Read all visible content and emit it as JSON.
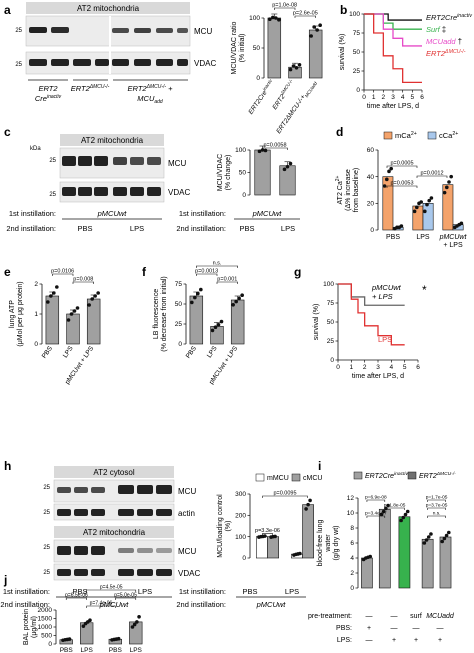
{
  "panels": {
    "a": {
      "letter": "a",
      "blot_title": "AT2 mitochondria",
      "mw_top": "25",
      "mw_bottom": "25",
      "band_mcu": "MCU",
      "band_vdac": "VDAC",
      "group_labels": [
        "ERT2\nCre",
        "ERT2ΔMCU-/-",
        "ERT2ΔMCU-/- +\nMCUadd"
      ],
      "group_label_1": "ERT2",
      "group_label_1b": "Cre",
      "group_label_1sup": "inactiv",
      "group_label_2": "ERT2",
      "group_label_2sup": "ΔMCU-/-",
      "group_label_3": "ERT2",
      "group_label_3sup": "ΔMCU-/-",
      "group_label_3b": "+",
      "group_label_3c": "MCU",
      "group_label_3sub": "add"
    },
    "b": {
      "letter": "b"
    },
    "c": {
      "letter": "c",
      "kda": "kDa",
      "blot_title": "AT2 mitochondria",
      "mw_top": "25",
      "mw_bottom": "25",
      "band_mcu": "MCU",
      "band_vdac": "VDAC",
      "first_inst": "1st instillation:",
      "second_inst": "2nd instillation:",
      "first_val": "pMCUwt",
      "second_pbs": "PBS",
      "second_lps": "LPS"
    },
    "d": {
      "letter": "d"
    },
    "e": {
      "letter": "e"
    },
    "f": {
      "letter": "f"
    },
    "g": {
      "letter": "g"
    },
    "h": {
      "letter": "h",
      "blot1_title": "AT2 cytosol",
      "blot2_title": "AT2 mitochondria",
      "mw_top1": "25",
      "mw_bot1": "25",
      "mw_top2": "25",
      "mw_bot2": "25",
      "band_mcu": "MCU",
      "band_actin": "actin",
      "band_vdac": "VDAC",
      "first_inst": "1st instillation:",
      "second_inst": "2nd instillation:",
      "first_pbs": "PBS",
      "first_lps": "LPS",
      "second_val": "pMCUwt"
    },
    "i": {
      "letter": "i",
      "pretreat": "pre-treatment:",
      "pbs": "PBS:",
      "lps": "LPS:",
      "dash": "—",
      "plus": "+",
      "surf": "surf",
      "mcuadd": "MCUadd"
    },
    "j": {
      "letter": "j"
    }
  },
  "chart_data": [
    {
      "id": "a-bar",
      "type": "bar",
      "categories": [
        "ERT2Cre inactiv",
        "ERT2ΔMCU-/-",
        "ERT2ΔMCU-/- + MCUadd"
      ],
      "tick_labels": [
        {
          "main": "ERT2Cre",
          "sup": "inactiv"
        },
        {
          "main": "ERT2",
          "sup": "ΔMCU-/-"
        },
        {
          "main": "ERT2ΔMCU-/-+",
          "sub": "MCUadd"
        }
      ],
      "values": [
        100,
        18,
        80
      ],
      "points": [
        [
          98,
          101,
          100,
          97
        ],
        [
          14,
          20,
          17,
          22
        ],
        [
          70,
          85,
          80,
          88
        ]
      ],
      "ylabel": "MCU/VDAC ratio",
      "ylabel2": "(% initial)",
      "ylim": [
        0,
        100
      ],
      "yticks": [
        0,
        50,
        100
      ],
      "bar_color": "#a0a0a0",
      "annotations": [
        {
          "text": "p=1.0e-08",
          "from": 0,
          "to": 1,
          "level": 2
        },
        {
          "text": "p=2.6e-05",
          "from": 1,
          "to": 2,
          "level": 1
        }
      ]
    },
    {
      "id": "b-survival",
      "type": "line",
      "ylabel": "survival (%)",
      "xlabel": "time after LPS, d",
      "xlim": [
        0,
        6
      ],
      "ylim": [
        0,
        100
      ],
      "xticks": [
        0,
        1,
        2,
        3,
        4,
        5,
        6
      ],
      "yticks": [
        0,
        25,
        50,
        75,
        100
      ],
      "series": [
        {
          "name": "ERT2Cre",
          "sup": "inactiv",
          "marker": "*",
          "color": "#111111",
          "x": [
            0,
            2.5,
            2.5,
            6
          ],
          "y": [
            100,
            100,
            92,
            92
          ]
        },
        {
          "name": "Surf",
          "marker": "‡",
          "color": "#37b24d",
          "italic": true,
          "x": [
            0,
            2,
            2,
            3,
            3,
            6
          ],
          "y": [
            100,
            100,
            88,
            88,
            80,
            80
          ]
        },
        {
          "name": "MCUadd",
          "marker": "†",
          "color": "#e64ac8",
          "italic": true,
          "x": [
            0,
            2,
            2,
            3,
            3,
            4,
            4,
            6
          ],
          "y": [
            100,
            100,
            80,
            80,
            68,
            68,
            58,
            58
          ]
        },
        {
          "name": "ERT2",
          "sup": "ΔMCU-/-",
          "marker": "",
          "color": "#e03131",
          "x": [
            0,
            1,
            1,
            2,
            2,
            3,
            3,
            4,
            4,
            6
          ],
          "y": [
            100,
            100,
            75,
            75,
            45,
            45,
            28,
            28,
            10,
            10
          ]
        }
      ]
    },
    {
      "id": "c-bar",
      "type": "bar",
      "categories": [
        "PBS",
        "LPS"
      ],
      "values": [
        100,
        65
      ],
      "points": [
        [
          97,
          100,
          99
        ],
        [
          57,
          63,
          70
        ]
      ],
      "ylabel": "MCU/VDAC",
      "ylabel2": "(% change)",
      "ylim": [
        0,
        100
      ],
      "yticks": [
        0,
        50,
        100
      ],
      "bar_color": "#a0a0a0",
      "annotations": [
        {
          "text": "p=0.0058",
          "from": 0,
          "to": 1,
          "level": 1
        }
      ]
    },
    {
      "id": "d-bar",
      "type": "bar",
      "categories": [
        "PBS",
        "LPS",
        "pMCUwt + LPS"
      ],
      "tick_labels": [
        {
          "main": "PBS"
        },
        {
          "main": "LPS"
        },
        {
          "main": "pMCUwt",
          "line2": "+ LPS"
        }
      ],
      "series": [
        {
          "name": "mCa",
          "sup": "2+",
          "values": [
            40,
            18,
            34
          ],
          "color": "#f4a36b",
          "points": [
            [
              33,
              38,
              44,
              46
            ],
            [
              14,
              17,
              20,
              21
            ],
            [
              28,
              32,
              36,
              40
            ]
          ]
        },
        {
          "name": "cCa",
          "sup": "2+",
          "values": [
            2,
            20,
            4
          ],
          "color": "#a9c8ec",
          "points": [
            [
              1,
              2,
              2,
              3
            ],
            [
              14,
              19,
              22,
              24
            ],
            [
              2,
              3,
              4,
              5
            ]
          ]
        }
      ],
      "ylabel": "AT2 Ca",
      "ylabel_sup": "2+",
      "ylabel2": "(Δ% increase",
      "ylabel3": "from baseline)",
      "ylim": [
        0,
        60
      ],
      "yticks": [
        0,
        20,
        40,
        60
      ],
      "annotations": [
        {
          "text": "p=0.0005",
          "from": 0,
          "to": 1,
          "level": 3
        },
        {
          "text": "p=0.0012",
          "from": 1,
          "to": 2,
          "level": 2
        },
        {
          "text": "p=0.0053",
          "from": 0,
          "to": 1,
          "level": 1
        }
      ]
    },
    {
      "id": "e-bar",
      "type": "bar",
      "categories": [
        "PBS",
        "LPS",
        "pMCUwt + LPS"
      ],
      "values": [
        1.6,
        1.0,
        1.5
      ],
      "points": [
        [
          1.4,
          1.6,
          1.7,
          1.9
        ],
        [
          0.8,
          1.0,
          1.1,
          1.2
        ],
        [
          1.3,
          1.5,
          1.6,
          1.7
        ]
      ],
      "ylabel": "lung ATP",
      "ylabel2": "(μMol per μg protein)",
      "ylim": [
        0,
        2
      ],
      "yticks": [
        0,
        1,
        2
      ],
      "bar_color": "#a0a0a0",
      "annotations": [
        {
          "text": "p=0.0106",
          "from": 0,
          "to": 1,
          "level": 2
        },
        {
          "text": "p=0.008",
          "from": 1,
          "to": 2,
          "level": 1
        }
      ]
    },
    {
      "id": "f-bar",
      "type": "bar",
      "categories": [
        "PBS",
        "LPS",
        "pMCUwt + LPS"
      ],
      "values": [
        60,
        22,
        55
      ],
      "points": [
        [
          52,
          58,
          63,
          68
        ],
        [
          17,
          21,
          24,
          28
        ],
        [
          49,
          53,
          57,
          61
        ]
      ],
      "ylabel": "LB fluorescence",
      "ylabel2": "(% decrease from initial)",
      "ylim": [
        0,
        75
      ],
      "yticks": [
        0,
        25,
        50,
        75
      ],
      "bar_color": "#a0a0a0",
      "annotations": [
        {
          "text": "n.s.",
          "from": 0,
          "to": 2,
          "level": 3
        },
        {
          "text": "p=0.0013",
          "from": 0,
          "to": 1,
          "level": 2
        },
        {
          "text": "p=0.001",
          "from": 1,
          "to": 2,
          "level": 1
        }
      ]
    },
    {
      "id": "g-survival",
      "type": "line",
      "ylabel": "survival (%)",
      "xlabel": "time after LPS, d",
      "xlim": [
        0,
        6
      ],
      "ylim": [
        0,
        100
      ],
      "xticks": [
        0,
        1,
        2,
        3,
        4,
        5,
        6
      ],
      "yticks": [
        0,
        25,
        50,
        75,
        100
      ],
      "series": [
        {
          "name": "pMCUwt",
          "name2": "+ LPS",
          "marker": "*",
          "color": "#666666",
          "x": [
            0,
            1,
            1,
            2,
            2,
            5
          ],
          "y": [
            100,
            100,
            83,
            83,
            72,
            72
          ]
        },
        {
          "name": "LPS",
          "marker": "",
          "color": "#e03131",
          "x": [
            0,
            1,
            1,
            1.5,
            1.5,
            2,
            2,
            3,
            3,
            4,
            4,
            5
          ],
          "y": [
            100,
            100,
            80,
            80,
            62,
            62,
            45,
            45,
            32,
            32,
            20,
            20
          ]
        }
      ]
    },
    {
      "id": "h-bar",
      "type": "bar",
      "categories": [
        "PBS",
        "LPS"
      ],
      "series": [
        {
          "name": "mMCU",
          "values": [
            100,
            18
          ],
          "color": "#ffffff",
          "points": [
            [
              98,
              100,
              101,
              103
            ],
            [
              14,
              17,
              19,
              21
            ]
          ]
        },
        {
          "name": "cMCU",
          "values": [
            100,
            250
          ],
          "color": "#a0a0a0",
          "points": [
            [
              98,
              100,
              101
            ],
            [
              230,
              250,
              270
            ]
          ]
        }
      ],
      "ylabel": "MCU/loading control",
      "ylabel2": "(%)",
      "ylim": [
        0,
        300
      ],
      "yticks": [
        0,
        100,
        200,
        300
      ],
      "annotations": [
        {
          "text": "p=0.0095",
          "from": 0,
          "to": 1,
          "level": 2
        },
        {
          "text": "p=3.3e-06",
          "from": 0,
          "to": 0,
          "level": 1
        }
      ]
    },
    {
      "id": "i-bar",
      "type": "bar",
      "categories": [
        "1",
        "2",
        "3",
        "4",
        "5"
      ],
      "values": [
        4,
        10.5,
        9.5,
        6.5,
        6.8
      ],
      "colors": [
        "#a0a0a0",
        "#a0a0a0",
        "#37b24d",
        "#a0a0a0",
        "#a0a0a0"
      ],
      "points": [
        [
          3.8,
          4.0,
          4.1,
          4.2
        ],
        [
          9.8,
          10.2,
          10.6,
          11.0
        ],
        [
          9.0,
          9.4,
          9.8,
          10.2
        ],
        [
          6.0,
          6.4,
          6.8,
          7.2
        ],
        [
          6.2,
          6.6,
          7.0,
          7.4
        ]
      ],
      "ylabel": "blood-free lung",
      "ylabel2": "water",
      "ylabel3": "(g/g dry wt)",
      "ylim": [
        0,
        12
      ],
      "yticks": [
        0,
        2,
        4,
        6,
        8,
        10,
        12
      ],
      "legend": [
        {
          "name": "ERT2Cre",
          "sup": "inactiv",
          "color": "#a0a0a0"
        },
        {
          "name": "ERT2",
          "sup": "ΔMCU-/-",
          "color": "#707070"
        }
      ],
      "annotations": [
        {
          "text": "p=6.9e-08",
          "from": 0,
          "to": 1,
          "level": 3
        },
        {
          "text": "p=1.7e-05",
          "from": 3,
          "to": 4,
          "level": 3
        },
        {
          "text": "p=1.8e-05",
          "from": 1,
          "to": 2,
          "level": 2
        },
        {
          "text": "p=3.7e-05",
          "from": 3,
          "to": 4,
          "level": 2
        },
        {
          "text": "p=3.4e-07",
          "from": 0,
          "to": 1,
          "level": 1
        },
        {
          "text": "n.s.",
          "from": 3,
          "to": 4,
          "level": 1
        }
      ]
    },
    {
      "id": "j-bar",
      "type": "bar",
      "categories": [
        "PBS",
        "LPS",
        "PBS",
        "LPS"
      ],
      "group_labels": [
        {
          "main": "ERT2Cre",
          "sup": "inactiv"
        },
        {
          "main": "ERT2",
          "sup": "ΔMCU-/-"
        }
      ],
      "values": [
        250,
        1250,
        280,
        1300
      ],
      "points": [
        [
          220,
          250,
          270,
          290
        ],
        [
          1050,
          1200,
          1300,
          1400
        ],
        [
          240,
          270,
          290,
          310
        ],
        [
          1000,
          1150,
          1300,
          1600
        ]
      ],
      "ylabel": "BAL protein",
      "ylabel2": "(μg/ml)",
      "ylim": [
        0,
        2000
      ],
      "yticks": [
        0,
        500,
        1000,
        1500,
        2000
      ],
      "bar_color": "#a0a0a0",
      "annotations": [
        {
          "text": "p=4.5e-05",
          "from": 1,
          "to": 3,
          "level": 3
        },
        {
          "text": "p=6.5e-06",
          "from": 0,
          "to": 1,
          "level": 2
        },
        {
          "text": "p=5.0e-05",
          "from": 2,
          "to": 3,
          "level": 2
        },
        {
          "text": "p=7.4e-06",
          "from": 1,
          "to": 2,
          "level": 1
        }
      ]
    }
  ]
}
